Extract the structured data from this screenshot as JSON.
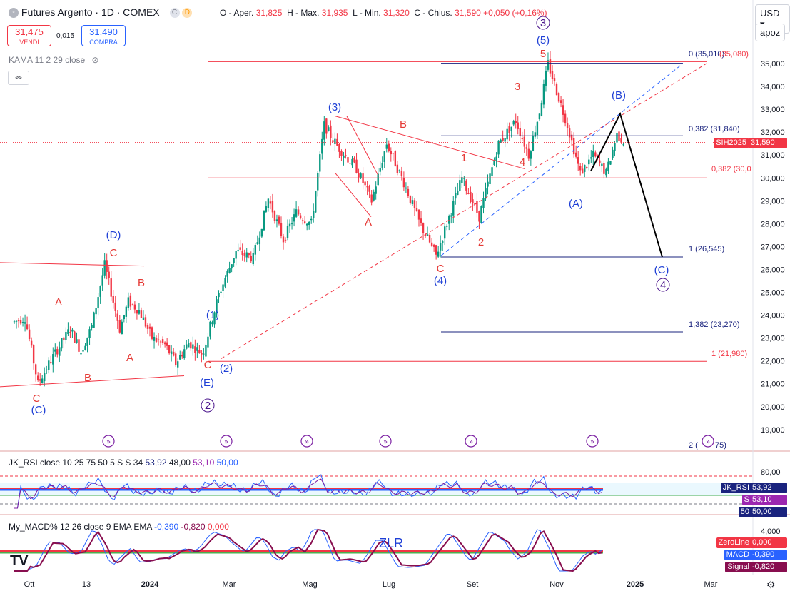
{
  "header": {
    "title": "Futures Argento · 1D · COMEX",
    "ohlc": {
      "open_label": "O - Aper.",
      "open": "31,825",
      "high_label": "H - Max.",
      "high": "31,935",
      "low_label": "L - Min.",
      "low": "31,320",
      "close_label": "C - Chius.",
      "close": "31,590",
      "change": "+0,050 (+0,16%)"
    },
    "sell": {
      "price": "31,475",
      "label": "VENDI"
    },
    "spread": "0,015",
    "buy": {
      "price": "31,490",
      "label": "COMPRA"
    },
    "kama_legend": "KAMA 11 2 29 close"
  },
  "controls": {
    "currency": "USD",
    "scale": "apoz"
  },
  "colors": {
    "up": "#089981",
    "down": "#f23645",
    "blue_wave": "#2962ff",
    "red_wave": "#f23645",
    "navy": "#1a237e"
  },
  "chart_data": [
    {
      "type": "candlestick",
      "symbol": "SIH2025",
      "last_price": "31,590",
      "y_ticks": [
        "35,000",
        "34,000",
        "33,000",
        "32,000",
        "31,000",
        "30,000",
        "29,000",
        "28,000",
        "27,000",
        "26,000",
        "25,000",
        "24,000",
        "23,000",
        "22,000",
        "21,000",
        "20,000",
        "19,000"
      ],
      "ylim": [
        18.7,
        35.8
      ],
      "x_ticks": [
        "Ott",
        "13",
        "2024",
        "Mar",
        "Mag",
        "Lug",
        "Set",
        "Nov",
        "2025",
        "Mar"
      ],
      "fib_levels": [
        {
          "label": "0 (35,010)",
          "value": 35.01
        },
        {
          "label": "(35,080)",
          "value": 35.08
        },
        {
          "label": "0,382 (31,840)",
          "value": 31.84
        },
        {
          "label": "0,382 (30,0",
          "value": 30.0
        },
        {
          "label": "1 (26,545)",
          "value": 26.545
        },
        {
          "label": "1,382 (23,270)",
          "value": 23.27
        },
        {
          "label": "1 (21,980)",
          "value": 21.98
        },
        {
          "label": "2 (",
          "value": 18.7
        },
        {
          "label": "75)",
          "value": 18.7
        }
      ],
      "wave_labels": [
        {
          "text": "(D)",
          "color": "blue"
        },
        {
          "text": "C",
          "color": "red"
        },
        {
          "text": "B",
          "color": "red"
        },
        {
          "text": "A",
          "color": "red"
        },
        {
          "text": "A",
          "color": "red"
        },
        {
          "text": "B",
          "color": "red"
        },
        {
          "text": "C",
          "color": "red"
        },
        {
          "text": "(C)",
          "color": "blue"
        },
        {
          "text": "(1)",
          "color": "blue"
        },
        {
          "text": "C",
          "color": "red"
        },
        {
          "text": "(2)",
          "color": "blue"
        },
        {
          "text": "(E)",
          "color": "blue"
        },
        {
          "text": "2",
          "color": "purple"
        },
        {
          "text": "(3)",
          "color": "blue"
        },
        {
          "text": "B",
          "color": "red"
        },
        {
          "text": "A",
          "color": "red"
        },
        {
          "text": "C",
          "color": "red"
        },
        {
          "text": "(4)",
          "color": "blue"
        },
        {
          "text": "1",
          "color": "red"
        },
        {
          "text": "2",
          "color": "red"
        },
        {
          "text": "3",
          "color": "red"
        },
        {
          "text": "4",
          "color": "red"
        },
        {
          "text": "5",
          "color": "red"
        },
        {
          "text": "(5)",
          "color": "blue"
        },
        {
          "text": "3",
          "color": "purple"
        },
        {
          "text": "(A)",
          "color": "blue"
        },
        {
          "text": "(B)",
          "color": "blue"
        },
        {
          "text": "(C)",
          "color": "blue"
        },
        {
          "text": "4",
          "color": "purple"
        }
      ],
      "projection": [
        {
          "date": "Nov",
          "value": 30.3
        },
        {
          "date": "Dec",
          "value": 32.8
        },
        {
          "date": "Dec",
          "value": 26.545
        }
      ]
    },
    {
      "type": "line",
      "name": "JK_RSI",
      "legend": "JK_RSI close 10 25 75 50 5 S S 34",
      "values": [
        "53,92",
        "48,00",
        "53,10",
        "50,00"
      ],
      "y_ticks": [
        "80,00"
      ],
      "badges": [
        {
          "label": "JK_RSI",
          "value": "53,92"
        },
        {
          "label": "S",
          "value": "53,10"
        },
        {
          "label": "50",
          "value": "50,00"
        }
      ]
    },
    {
      "type": "line",
      "name": "My_MACD%",
      "legend": "My_MACD% 12 26 close 9 EMA EMA",
      "values": [
        "-0,390",
        "-0,820",
        "0,000"
      ],
      "y_ticks": [
        "4,000"
      ],
      "annotation": "ZLR",
      "badges": [
        {
          "label": "ZeroLine",
          "value": "0,000"
        },
        {
          "label": "MACD",
          "value": "-0,390"
        },
        {
          "label": "Signal",
          "value": "-0,820"
        }
      ]
    }
  ],
  "footer": {
    "logo": "TV"
  }
}
